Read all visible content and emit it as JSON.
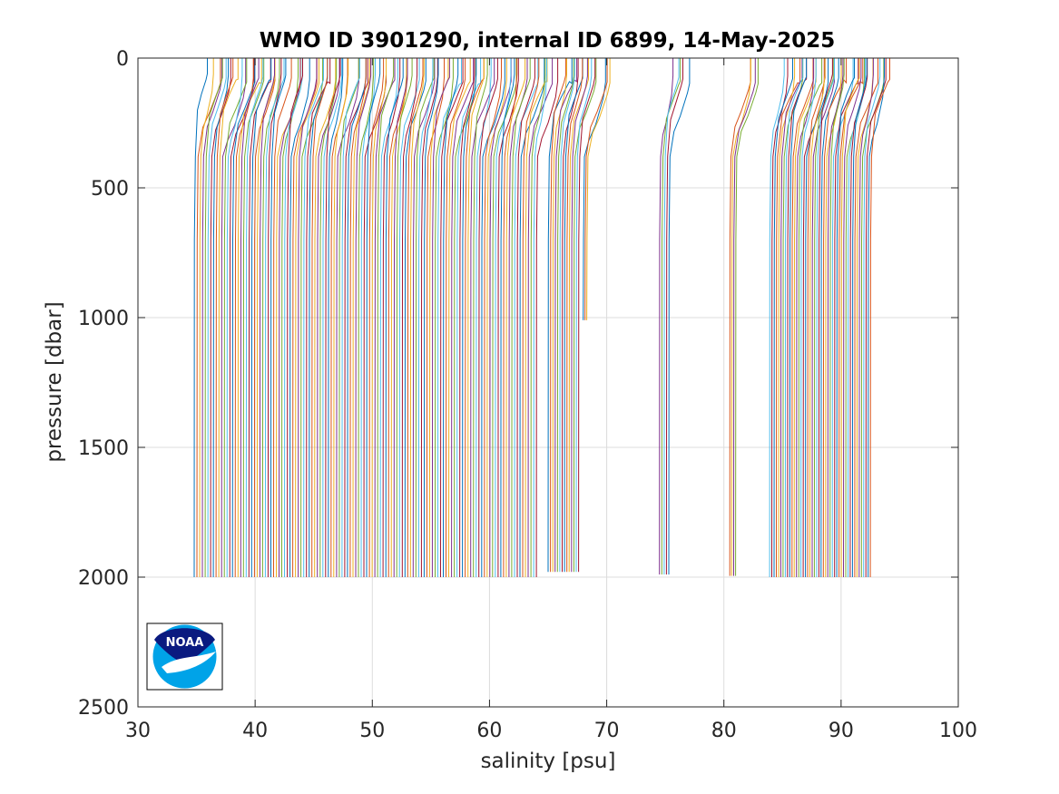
{
  "chart_data": {
    "type": "line",
    "title": "WMO ID 3901290, internal ID 6899, 14-May-2025",
    "xlabel": "salinity [psu]",
    "ylabel": "pressure [dbar]",
    "xlim": [
      30,
      100
    ],
    "ylim": [
      0,
      2500
    ],
    "y_reversed": true,
    "grid": true,
    "x_ticks": [
      30,
      40,
      50,
      60,
      70,
      80,
      90,
      100
    ],
    "x_tick_labels": [
      "30",
      "40",
      "50",
      "60",
      "70",
      "80",
      "90",
      "100"
    ],
    "y_ticks": [
      0,
      500,
      1000,
      1500,
      2000,
      2500
    ],
    "y_tick_labels": [
      "0",
      "500",
      "1000",
      "1500",
      "2000",
      "2500"
    ],
    "profile_offset_note": "",
    "series_colors": [
      "#0072BD",
      "#D95319",
      "#EDB120",
      "#7E2F8E",
      "#77AC30",
      "#4DBEEE",
      "#A2142F"
    ],
    "profile_groups": [
      {
        "first_deep_salinity": 34.8,
        "last_deep_salinity": 64.0,
        "count": 126,
        "surface_shift": 1.6,
        "max_pressure": 2000
      },
      {
        "first_deep_salinity": 65.0,
        "last_deep_salinity": 67.6,
        "count": 14,
        "surface_shift": 1.6,
        "max_pressure": 1980
      },
      {
        "first_deep_salinity": 68.0,
        "last_deep_salinity": 68.3,
        "count": 3,
        "surface_shift": 1.6,
        "max_pressure": 1010
      },
      {
        "first_deep_salinity": 74.5,
        "last_deep_salinity": 75.3,
        "count": 5,
        "surface_shift": 1.4,
        "max_pressure": 1990
      },
      {
        "first_deep_salinity": 80.5,
        "last_deep_salinity": 81.0,
        "count": 4,
        "surface_shift": 1.5,
        "max_pressure": 1995
      },
      {
        "first_deep_salinity": 83.9,
        "last_deep_salinity": 92.5,
        "count": 46,
        "surface_shift": 1.6,
        "max_pressure": 2000
      }
    ]
  },
  "logo": {
    "text": "NOAA",
    "name": "noaa-logo",
    "colors": {
      "navy": "#0a1a80",
      "sky": "#00a3e8",
      "white": "#ffffff"
    }
  }
}
